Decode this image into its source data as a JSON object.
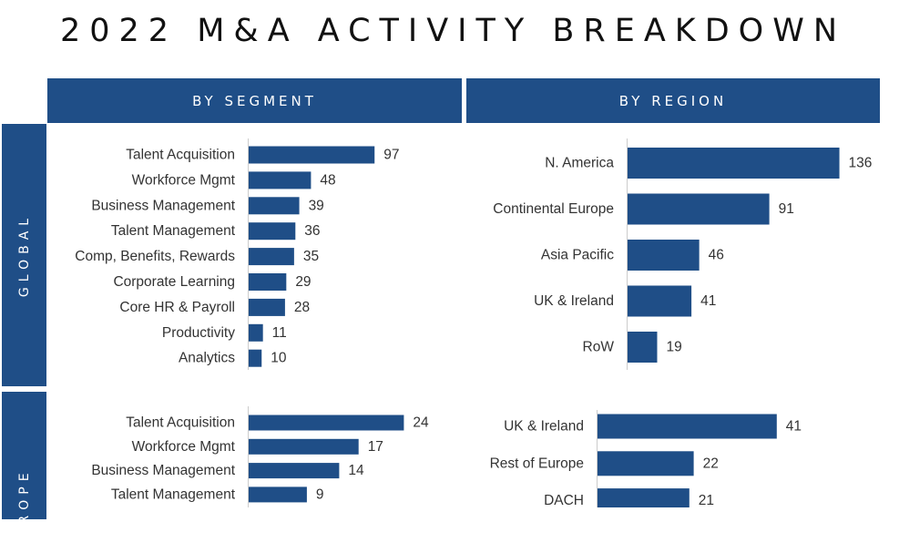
{
  "title": "2022 M&A ACTIVITY BREAKDOWN",
  "headers": {
    "segment": "BY SEGMENT",
    "region": "BY REGION"
  },
  "rows": {
    "global": "GLOBAL",
    "europe": "EUROPE"
  },
  "colors": {
    "bar": "#1f4e87",
    "header": "#1f4e87",
    "axis": "#cccccc"
  },
  "chart_data": [
    {
      "type": "bar",
      "orientation": "horizontal",
      "row": "GLOBAL",
      "column": "BY SEGMENT",
      "categories": [
        "Talent Acquisition",
        "Workforce Mgmt",
        "Business Management",
        "Talent Management",
        "Comp, Benefits, Rewards",
        "Corporate Learning",
        "Core HR & Payroll",
        "Productivity",
        "Analytics"
      ],
      "values": [
        97,
        48,
        39,
        36,
        35,
        29,
        28,
        11,
        10
      ]
    },
    {
      "type": "bar",
      "orientation": "horizontal",
      "row": "GLOBAL",
      "column": "BY REGION",
      "categories": [
        "N. America",
        "Continental Europe",
        "Asia Pacific",
        "UK & Ireland",
        "RoW"
      ],
      "values": [
        136,
        91,
        46,
        41,
        19
      ]
    },
    {
      "type": "bar",
      "orientation": "horizontal",
      "row": "EUROPE",
      "column": "BY SEGMENT",
      "categories": [
        "Talent Acquisition",
        "Workforce Mgmt",
        "Business Management",
        "Talent Management"
      ],
      "values": [
        24,
        17,
        14,
        9
      ]
    },
    {
      "type": "bar",
      "orientation": "horizontal",
      "row": "EUROPE",
      "column": "BY REGION",
      "categories": [
        "UK & Ireland",
        "Rest of Europe",
        "DACH"
      ],
      "values": [
        41,
        22,
        21
      ]
    }
  ]
}
